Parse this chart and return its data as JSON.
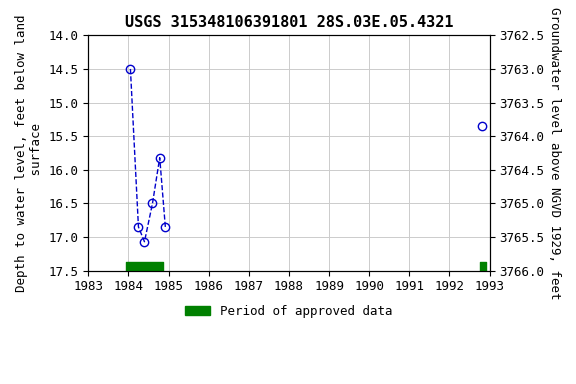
{
  "title": "USGS 315348106391801 28S.03E.05.4321",
  "ylabel_left": "Depth to water level, feet below land\n surface",
  "ylabel_right": "Groundwater level above NGVD 1929, feet",
  "xlim": [
    1983,
    1993
  ],
  "ylim_left": [
    14.0,
    17.5
  ],
  "ylim_right": [
    3762.5,
    3766.0
  ],
  "xticks": [
    1983,
    1984,
    1985,
    1986,
    1987,
    1988,
    1989,
    1990,
    1991,
    1992,
    1993
  ],
  "yticks_left": [
    14.0,
    14.5,
    15.0,
    15.5,
    16.0,
    16.5,
    17.0,
    17.5
  ],
  "yticks_right": [
    3762.5,
    3763.0,
    3763.5,
    3764.0,
    3764.5,
    3765.0,
    3765.5,
    3766.0
  ],
  "segment1_x": [
    1984.05,
    1984.25,
    1984.4,
    1984.6,
    1984.78,
    1984.92
  ],
  "segment1_y": [
    14.5,
    16.85,
    17.07,
    16.5,
    15.82,
    16.85
  ],
  "segment2_x": [
    1992.82
  ],
  "segment2_y": [
    15.35
  ],
  "line_color": "#0000cc",
  "marker_color": "#0000cc",
  "marker_facecolor": "none",
  "green_bars": [
    {
      "x_start": 1983.95,
      "x_end": 1984.85
    },
    {
      "x_start": 1992.77,
      "x_end": 1992.92
    }
  ],
  "legend_label": "Period of approved data",
  "legend_color": "#008000",
  "background_color": "#ffffff",
  "grid_color": "#cccccc",
  "title_fontsize": 11,
  "label_fontsize": 9,
  "tick_fontsize": 9
}
